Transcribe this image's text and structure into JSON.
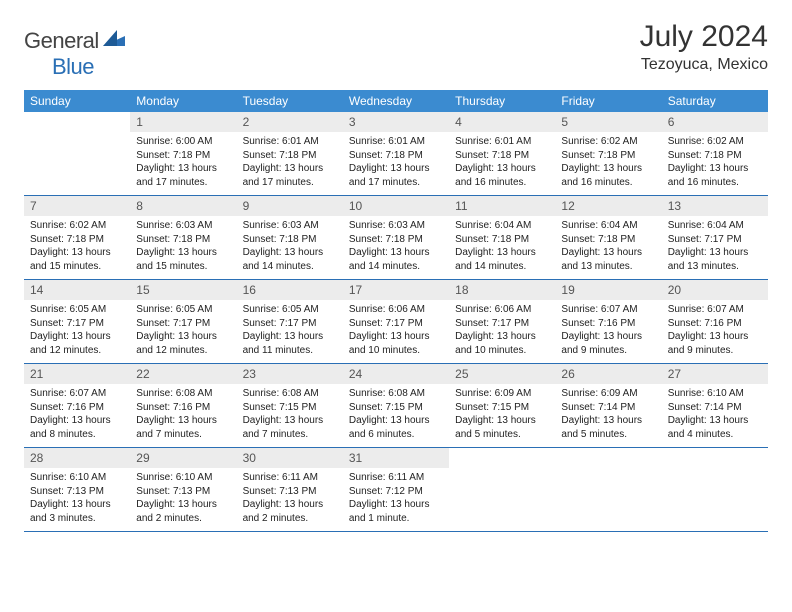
{
  "brand": {
    "part1": "General",
    "part2": "Blue"
  },
  "title": "July 2024",
  "location": "Tezoyuca, Mexico",
  "colors": {
    "header_bg": "#3b8bd0",
    "rule": "#2a6fb5",
    "daynum_bg": "#ececec",
    "text": "#222222",
    "logo_gray": "#555555",
    "logo_blue": "#2a6fb5"
  },
  "dow": [
    "Sunday",
    "Monday",
    "Tuesday",
    "Wednesday",
    "Thursday",
    "Friday",
    "Saturday"
  ],
  "weeks": [
    [
      {
        "n": "",
        "sr": "",
        "ss": "",
        "dl": ""
      },
      {
        "n": "1",
        "sr": "Sunrise: 6:00 AM",
        "ss": "Sunset: 7:18 PM",
        "dl": "Daylight: 13 hours and 17 minutes."
      },
      {
        "n": "2",
        "sr": "Sunrise: 6:01 AM",
        "ss": "Sunset: 7:18 PM",
        "dl": "Daylight: 13 hours and 17 minutes."
      },
      {
        "n": "3",
        "sr": "Sunrise: 6:01 AM",
        "ss": "Sunset: 7:18 PM",
        "dl": "Daylight: 13 hours and 17 minutes."
      },
      {
        "n": "4",
        "sr": "Sunrise: 6:01 AM",
        "ss": "Sunset: 7:18 PM",
        "dl": "Daylight: 13 hours and 16 minutes."
      },
      {
        "n": "5",
        "sr": "Sunrise: 6:02 AM",
        "ss": "Sunset: 7:18 PM",
        "dl": "Daylight: 13 hours and 16 minutes."
      },
      {
        "n": "6",
        "sr": "Sunrise: 6:02 AM",
        "ss": "Sunset: 7:18 PM",
        "dl": "Daylight: 13 hours and 16 minutes."
      }
    ],
    [
      {
        "n": "7",
        "sr": "Sunrise: 6:02 AM",
        "ss": "Sunset: 7:18 PM",
        "dl": "Daylight: 13 hours and 15 minutes."
      },
      {
        "n": "8",
        "sr": "Sunrise: 6:03 AM",
        "ss": "Sunset: 7:18 PM",
        "dl": "Daylight: 13 hours and 15 minutes."
      },
      {
        "n": "9",
        "sr": "Sunrise: 6:03 AM",
        "ss": "Sunset: 7:18 PM",
        "dl": "Daylight: 13 hours and 14 minutes."
      },
      {
        "n": "10",
        "sr": "Sunrise: 6:03 AM",
        "ss": "Sunset: 7:18 PM",
        "dl": "Daylight: 13 hours and 14 minutes."
      },
      {
        "n": "11",
        "sr": "Sunrise: 6:04 AM",
        "ss": "Sunset: 7:18 PM",
        "dl": "Daylight: 13 hours and 14 minutes."
      },
      {
        "n": "12",
        "sr": "Sunrise: 6:04 AM",
        "ss": "Sunset: 7:18 PM",
        "dl": "Daylight: 13 hours and 13 minutes."
      },
      {
        "n": "13",
        "sr": "Sunrise: 6:04 AM",
        "ss": "Sunset: 7:17 PM",
        "dl": "Daylight: 13 hours and 13 minutes."
      }
    ],
    [
      {
        "n": "14",
        "sr": "Sunrise: 6:05 AM",
        "ss": "Sunset: 7:17 PM",
        "dl": "Daylight: 13 hours and 12 minutes."
      },
      {
        "n": "15",
        "sr": "Sunrise: 6:05 AM",
        "ss": "Sunset: 7:17 PM",
        "dl": "Daylight: 13 hours and 12 minutes."
      },
      {
        "n": "16",
        "sr": "Sunrise: 6:05 AM",
        "ss": "Sunset: 7:17 PM",
        "dl": "Daylight: 13 hours and 11 minutes."
      },
      {
        "n": "17",
        "sr": "Sunrise: 6:06 AM",
        "ss": "Sunset: 7:17 PM",
        "dl": "Daylight: 13 hours and 10 minutes."
      },
      {
        "n": "18",
        "sr": "Sunrise: 6:06 AM",
        "ss": "Sunset: 7:17 PM",
        "dl": "Daylight: 13 hours and 10 minutes."
      },
      {
        "n": "19",
        "sr": "Sunrise: 6:07 AM",
        "ss": "Sunset: 7:16 PM",
        "dl": "Daylight: 13 hours and 9 minutes."
      },
      {
        "n": "20",
        "sr": "Sunrise: 6:07 AM",
        "ss": "Sunset: 7:16 PM",
        "dl": "Daylight: 13 hours and 9 minutes."
      }
    ],
    [
      {
        "n": "21",
        "sr": "Sunrise: 6:07 AM",
        "ss": "Sunset: 7:16 PM",
        "dl": "Daylight: 13 hours and 8 minutes."
      },
      {
        "n": "22",
        "sr": "Sunrise: 6:08 AM",
        "ss": "Sunset: 7:16 PM",
        "dl": "Daylight: 13 hours and 7 minutes."
      },
      {
        "n": "23",
        "sr": "Sunrise: 6:08 AM",
        "ss": "Sunset: 7:15 PM",
        "dl": "Daylight: 13 hours and 7 minutes."
      },
      {
        "n": "24",
        "sr": "Sunrise: 6:08 AM",
        "ss": "Sunset: 7:15 PM",
        "dl": "Daylight: 13 hours and 6 minutes."
      },
      {
        "n": "25",
        "sr": "Sunrise: 6:09 AM",
        "ss": "Sunset: 7:15 PM",
        "dl": "Daylight: 13 hours and 5 minutes."
      },
      {
        "n": "26",
        "sr": "Sunrise: 6:09 AM",
        "ss": "Sunset: 7:14 PM",
        "dl": "Daylight: 13 hours and 5 minutes."
      },
      {
        "n": "27",
        "sr": "Sunrise: 6:10 AM",
        "ss": "Sunset: 7:14 PM",
        "dl": "Daylight: 13 hours and 4 minutes."
      }
    ],
    [
      {
        "n": "28",
        "sr": "Sunrise: 6:10 AM",
        "ss": "Sunset: 7:13 PM",
        "dl": "Daylight: 13 hours and 3 minutes."
      },
      {
        "n": "29",
        "sr": "Sunrise: 6:10 AM",
        "ss": "Sunset: 7:13 PM",
        "dl": "Daylight: 13 hours and 2 minutes."
      },
      {
        "n": "30",
        "sr": "Sunrise: 6:11 AM",
        "ss": "Sunset: 7:13 PM",
        "dl": "Daylight: 13 hours and 2 minutes."
      },
      {
        "n": "31",
        "sr": "Sunrise: 6:11 AM",
        "ss": "Sunset: 7:12 PM",
        "dl": "Daylight: 13 hours and 1 minute."
      },
      {
        "n": "",
        "sr": "",
        "ss": "",
        "dl": ""
      },
      {
        "n": "",
        "sr": "",
        "ss": "",
        "dl": ""
      },
      {
        "n": "",
        "sr": "",
        "ss": "",
        "dl": ""
      }
    ]
  ]
}
